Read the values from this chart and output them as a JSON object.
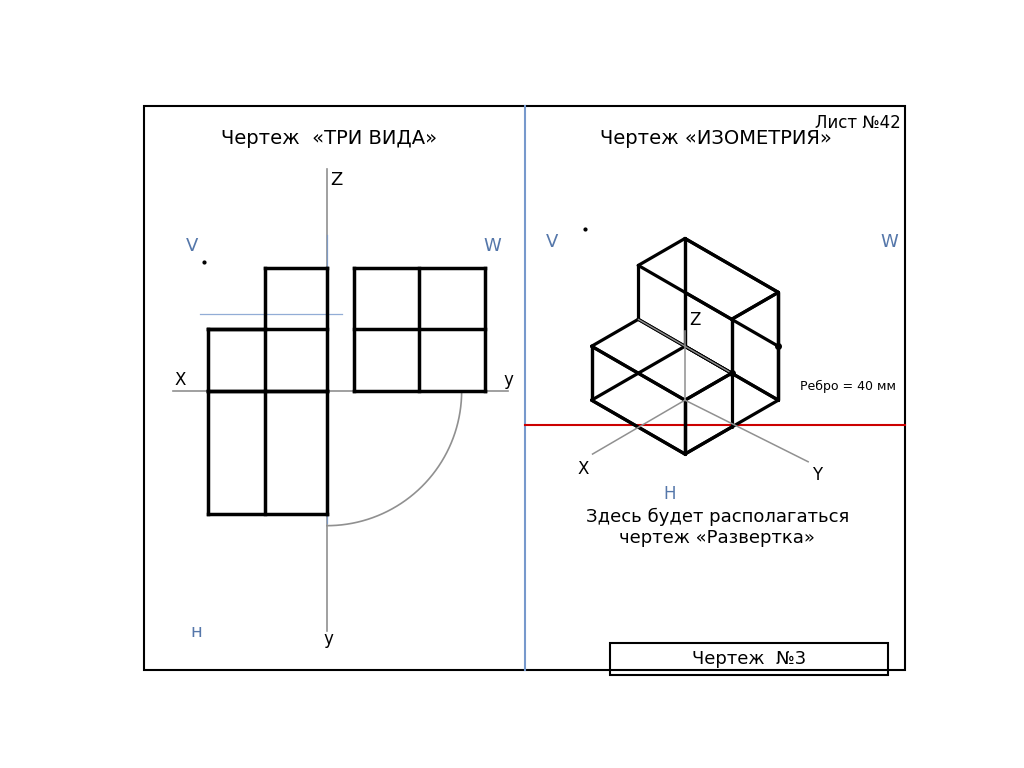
{
  "bg_color": "#ffffff",
  "title_three_views": "Чертеж  «ТРИ ВИДА»",
  "title_isometry": "Чертеж «ИЗОМЕТРИЯ»",
  "title_sheet": "Лист №42",
  "title_drawing": "Чертеж  №3",
  "text_razvyortka": "Здесь будет располагаться\nчертеж «Развертка»",
  "text_rebro": "Ребро = 40 мм",
  "axis_color": "#909090",
  "line_color": "#000000",
  "red_line_color": "#cc0000",
  "blue_line_color": "#7799cc",
  "label_color_blue": "#5577aa",
  "divider_color": "#7799cc"
}
